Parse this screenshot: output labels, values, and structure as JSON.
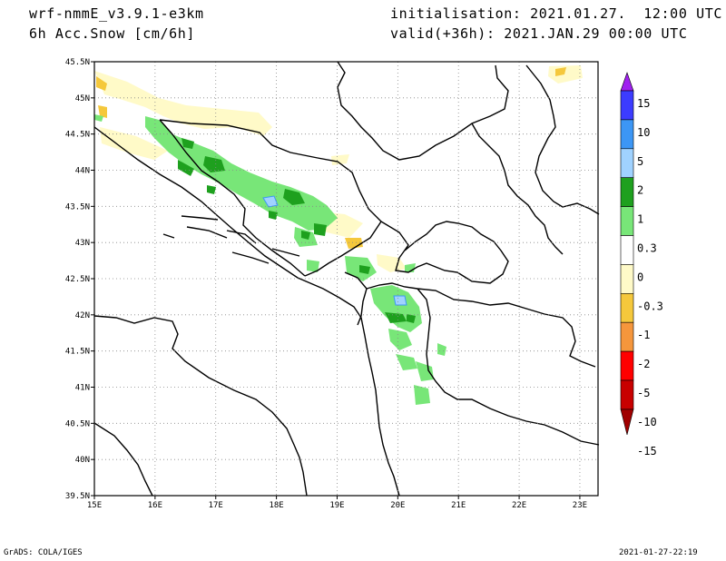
{
  "header": {
    "model_label": "wrf-nmmE_v3.9.1-e3km",
    "field_label": "6h Acc.Snow [cm/6h]",
    "init_label": "initialisation: 2021.01.27.  12:00 UTC",
    "valid_label": "valid(+36h): 2021.JAN.29 00:00 UTC"
  },
  "footer": {
    "left": "GrADS: COLA/IGES",
    "right": "2021-01-27-22:19"
  },
  "map": {
    "lon_range": [
      15,
      23.3
    ],
    "lat_range": [
      39.5,
      45.5
    ],
    "lon_ticks": [
      "15E",
      "16E",
      "17E",
      "18E",
      "19E",
      "20E",
      "21E",
      "22E",
      "23E"
    ],
    "lat_ticks": [
      "39.5N",
      "40N",
      "40.5N",
      "41N",
      "41.5N",
      "42N",
      "42.5N",
      "43N",
      "43.5N",
      "44N",
      "44.5N",
      "45N",
      "45.5N"
    ],
    "grid": "dotted"
  },
  "colorbar": {
    "labels": [
      "15",
      "10",
      "5",
      "2",
      "1",
      "0.3",
      "0",
      "-0.3",
      "-1",
      "-2",
      "-5",
      "-10",
      "-15"
    ],
    "colors": [
      "#a020f0",
      "#3c3cff",
      "#3c96f5",
      "#a0d2ff",
      "#1ea01e",
      "#78e678",
      "#ffffff",
      "#fffac8",
      "#f5c83c",
      "#f5963c",
      "#ff0000",
      "#c80000",
      "#a00000"
    ]
  }
}
